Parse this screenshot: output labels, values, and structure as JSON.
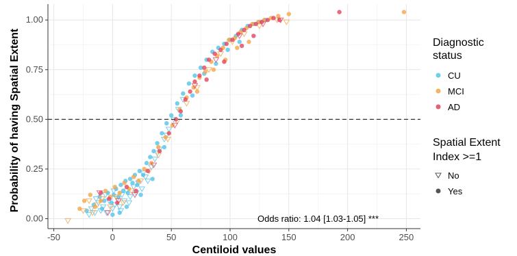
{
  "chart_data": {
    "type": "scatter",
    "title": "",
    "xlabel": "Centiloid values",
    "ylabel": "Probability of having Spatial Extent",
    "xlim": [
      -55,
      262
    ],
    "ylim": [
      -0.05,
      1.08
    ],
    "x_ticks": [
      -50,
      0,
      50,
      100,
      150,
      200,
      250
    ],
    "x_tick_labels": [
      "-50",
      "0",
      "50",
      "100",
      "150",
      "200",
      "250"
    ],
    "y_ticks": [
      0,
      0.25,
      0.5,
      0.75,
      1.0
    ],
    "y_tick_labels": [
      "0.00",
      "0.25",
      "0.50",
      "0.75",
      "1.00"
    ],
    "grid": true,
    "reference_line": {
      "y": 0.5,
      "style": "dashed"
    },
    "annotation": "Odds ratio: 1.04 [1.03-1.05] ***",
    "colors": {
      "CU": "#56c3e8",
      "MCI": "#f5a54a",
      "AD": "#e2455f"
    },
    "legends": [
      {
        "title": "Diagnostic status",
        "entries": [
          "CU",
          "MCI",
          "AD"
        ]
      },
      {
        "title": "Spatial Extent Index >=1",
        "entries": [
          "No",
          "Yes"
        ]
      }
    ],
    "series": [
      {
        "name": "CU",
        "shape_no": "open-triangle",
        "shape_yes": "filled-circle",
        "points_no": [
          [
            -20,
            0.02
          ],
          [
            -18,
            0.05
          ],
          [
            -15,
            0.03
          ],
          [
            -12,
            0.08
          ],
          [
            -10,
            0.04
          ],
          [
            -8,
            0.06
          ],
          [
            -5,
            0.03
          ],
          [
            -3,
            0.09
          ],
          [
            0,
            0.05
          ],
          [
            2,
            0.07
          ],
          [
            4,
            0.1
          ],
          [
            6,
            0.06
          ],
          [
            8,
            0.12
          ],
          [
            10,
            0.09
          ],
          [
            12,
            0.14
          ],
          [
            15,
            0.11
          ],
          [
            18,
            0.16
          ],
          [
            20,
            0.13
          ],
          [
            22,
            0.18
          ],
          [
            25,
            0.15
          ],
          [
            28,
            0.21
          ],
          [
            30,
            0.19
          ],
          [
            33,
            0.26
          ],
          [
            36,
            0.3
          ],
          [
            40,
            0.35
          ],
          [
            44,
            0.4
          ],
          [
            48,
            0.45
          ],
          [
            52,
            0.5
          ],
          [
            56,
            0.55
          ],
          [
            60,
            0.6
          ],
          [
            -14,
            0.1
          ],
          [
            -6,
            0.12
          ],
          [
            1,
            0.14
          ],
          [
            7,
            0.04
          ],
          [
            14,
            0.08
          ],
          [
            26,
            0.23
          ],
          [
            38,
            0.33
          ],
          [
            46,
            0.42
          ]
        ],
        "points_yes": [
          [
            -22,
            0.04
          ],
          [
            -16,
            0.07
          ],
          [
            -11,
            0.11
          ],
          [
            -7,
            0.09
          ],
          [
            -4,
            0.13
          ],
          [
            -1,
            0.08
          ],
          [
            1,
            0.12
          ],
          [
            3,
            0.15
          ],
          [
            5,
            0.11
          ],
          [
            7,
            0.17
          ],
          [
            9,
            0.14
          ],
          [
            11,
            0.19
          ],
          [
            13,
            0.13
          ],
          [
            15,
            0.2
          ],
          [
            17,
            0.18
          ],
          [
            19,
            0.22
          ],
          [
            21,
            0.17
          ],
          [
            23,
            0.24
          ],
          [
            26,
            0.22
          ],
          [
            29,
            0.28
          ],
          [
            32,
            0.31
          ],
          [
            35,
            0.34
          ],
          [
            38,
            0.38
          ],
          [
            42,
            0.43
          ],
          [
            46,
            0.48
          ],
          [
            50,
            0.52
          ],
          [
            55,
            0.58
          ],
          [
            60,
            0.63
          ],
          [
            65,
            0.68
          ],
          [
            70,
            0.72
          ],
          [
            75,
            0.76
          ],
          [
            80,
            0.8
          ],
          [
            85,
            0.84
          ],
          [
            90,
            0.86
          ],
          [
            95,
            0.88
          ],
          [
            100,
            0.9
          ],
          [
            105,
            0.92
          ],
          [
            110,
            0.95
          ],
          [
            115,
            0.97
          ],
          [
            120,
            0.98
          ],
          [
            125,
            0.99
          ],
          [
            130,
            1.0
          ],
          [
            -9,
            0.05
          ],
          [
            0,
            0.02
          ],
          [
            6,
            0.03
          ],
          [
            12,
            0.06
          ],
          [
            24,
            0.12
          ],
          [
            34,
            0.2
          ],
          [
            44,
            0.36
          ],
          [
            58,
            0.52
          ],
          [
            68,
            0.62
          ],
          [
            78,
            0.73
          ],
          [
            88,
            0.78
          ],
          [
            98,
            0.85
          ],
          [
            108,
            0.89
          ]
        ]
      },
      {
        "name": "MCI",
        "shape_no": "open-triangle",
        "shape_yes": "filled-circle",
        "points_no": [
          [
            -38,
            -0.01
          ],
          [
            -25,
            0.04
          ],
          [
            -20,
            0.09
          ],
          [
            -17,
            0.03
          ],
          [
            -13,
            0.07
          ],
          [
            -9,
            0.1
          ],
          [
            -2,
            0.06
          ],
          [
            3,
            0.11
          ],
          [
            9,
            0.08
          ],
          [
            16,
            0.14
          ],
          [
            24,
            0.19
          ],
          [
            31,
            0.24
          ],
          [
            39,
            0.32
          ],
          [
            47,
            0.4
          ],
          [
            55,
            0.49
          ],
          [
            63,
            0.58
          ],
          [
            72,
            0.66
          ],
          [
            82,
            0.75
          ],
          [
            92,
            0.83
          ],
          [
            102,
            0.89
          ],
          [
            112,
            0.93
          ],
          [
            125,
            0.97
          ],
          [
            140,
            1.0
          ],
          [
            148,
            0.99
          ]
        ],
        "points_yes": [
          [
            -28,
            0.05
          ],
          [
            -24,
            0.09
          ],
          [
            -19,
            0.12
          ],
          [
            -15,
            0.06
          ],
          [
            -10,
            0.09
          ],
          [
            -6,
            0.14
          ],
          [
            -2,
            0.11
          ],
          [
            2,
            0.16
          ],
          [
            6,
            0.13
          ],
          [
            10,
            0.18
          ],
          [
            14,
            0.15
          ],
          [
            18,
            0.21
          ],
          [
            22,
            0.19
          ],
          [
            27,
            0.25
          ],
          [
            33,
            0.28
          ],
          [
            39,
            0.36
          ],
          [
            45,
            0.41
          ],
          [
            51,
            0.47
          ],
          [
            57,
            0.55
          ],
          [
            63,
            0.61
          ],
          [
            69,
            0.66
          ],
          [
            74,
            0.71
          ],
          [
            79,
            0.74
          ],
          [
            84,
            0.79
          ],
          [
            89,
            0.82
          ],
          [
            94,
            0.86
          ],
          [
            99,
            0.9
          ],
          [
            104,
            0.91
          ],
          [
            109,
            0.94
          ],
          [
            114,
            0.96
          ],
          [
            119,
            0.98
          ],
          [
            124,
            0.99
          ],
          [
            129,
            1.0
          ],
          [
            135,
            1.01
          ],
          [
            141,
            1.02
          ],
          [
            150,
            1.03
          ],
          [
            248,
            1.04
          ],
          [
            72,
            0.64
          ],
          [
            86,
            0.75
          ],
          [
            96,
            0.8
          ],
          [
            106,
            0.86
          ],
          [
            116,
            0.89
          ]
        ]
      },
      {
        "name": "AD",
        "shape_no": "open-triangle",
        "shape_yes": "filled-circle",
        "points_no": [
          [
            -11,
            0.13
          ],
          [
            -4,
            0.03
          ],
          [
            5,
            0.09
          ],
          [
            19,
            0.12
          ],
          [
            35,
            0.27
          ],
          [
            53,
            0.47
          ],
          [
            70,
            0.67
          ],
          [
            88,
            0.8
          ],
          [
            108,
            0.92
          ],
          [
            128,
            0.98
          ],
          [
            143,
            1.0
          ]
        ],
        "points_yes": [
          [
            -10,
            0.13
          ],
          [
            -3,
            0.1
          ],
          [
            4,
            0.08
          ],
          [
            12,
            0.16
          ],
          [
            20,
            0.14
          ],
          [
            30,
            0.24
          ],
          [
            40,
            0.34
          ],
          [
            48,
            0.43
          ],
          [
            54,
            0.5
          ],
          [
            58,
            0.54
          ],
          [
            62,
            0.6
          ],
          [
            66,
            0.64
          ],
          [
            70,
            0.69
          ],
          [
            74,
            0.72
          ],
          [
            78,
            0.76
          ],
          [
            82,
            0.8
          ],
          [
            87,
            0.83
          ],
          [
            92,
            0.85
          ],
          [
            97,
            0.88
          ],
          [
            102,
            0.9
          ],
          [
            107,
            0.93
          ],
          [
            112,
            0.95
          ],
          [
            117,
            0.97
          ],
          [
            122,
            0.98
          ],
          [
            127,
            0.99
          ],
          [
            132,
            1.0
          ],
          [
            137,
            1.01
          ],
          [
            142,
            1.0
          ],
          [
            193,
            1.04
          ],
          [
            80,
            0.7
          ],
          [
            95,
            0.79
          ],
          [
            110,
            0.87
          ],
          [
            120,
            0.92
          ]
        ]
      }
    ]
  }
}
